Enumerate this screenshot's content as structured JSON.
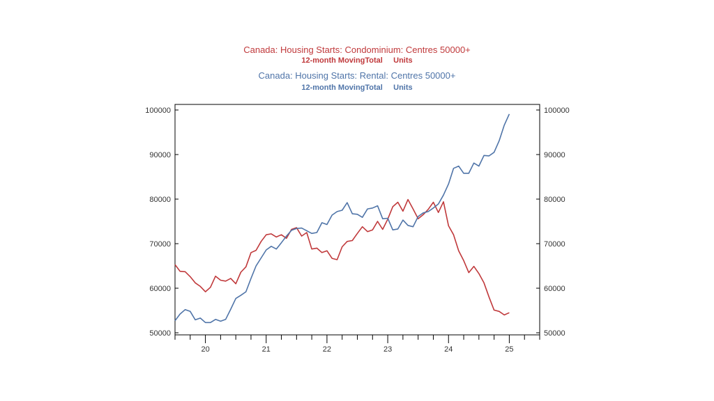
{
  "colors": {
    "condo": "#c0393b",
    "rental": "#4f74a8",
    "axis": "#000000",
    "tick_text": "#333333"
  },
  "chart_data": {
    "type": "line",
    "title": {
      "series1_line1": "Canada: Housing Starts: Condominium: Centres 50000+",
      "series1_line2": "12-month MovingTotal     Units",
      "series2_line1": "Canada: Housing Starts: Rental: Centres 50000+",
      "series2_line2": "12-month MovingTotal     Units"
    },
    "xlabel": "",
    "ylabel": "",
    "ylim": [
      50000,
      100000
    ],
    "yticks": [
      50000,
      60000,
      70000,
      80000,
      90000,
      100000
    ],
    "ytick_labels": [
      "50000",
      "60000",
      "70000",
      "80000",
      "90000",
      "100000"
    ],
    "xlim": [
      2019.5,
      2025.5
    ],
    "xtick_labels": [
      "20",
      "21",
      "22",
      "23",
      "24",
      "25"
    ],
    "xtick_label_positions": [
      2020,
      2021,
      2022,
      2023,
      2024,
      2025
    ],
    "minor_tick_step": 0.25,
    "grid": false,
    "dual_axis": true,
    "series": [
      {
        "key": "condo",
        "values": [
          [
            2019.5,
            65300
          ],
          [
            2019.583,
            63800
          ],
          [
            2019.667,
            63700
          ],
          [
            2019.75,
            62600
          ],
          [
            2019.833,
            61200
          ],
          [
            2019.917,
            60400
          ],
          [
            2020.0,
            59200
          ],
          [
            2020.083,
            60200
          ],
          [
            2020.167,
            62700
          ],
          [
            2020.25,
            61800
          ],
          [
            2020.333,
            61600
          ],
          [
            2020.417,
            62200
          ],
          [
            2020.5,
            61000
          ],
          [
            2020.583,
            63600
          ],
          [
            2020.667,
            64800
          ],
          [
            2020.75,
            68000
          ],
          [
            2020.833,
            68500
          ],
          [
            2020.917,
            70500
          ],
          [
            2021.0,
            72000
          ],
          [
            2021.083,
            72200
          ],
          [
            2021.167,
            71500
          ],
          [
            2021.25,
            72000
          ],
          [
            2021.333,
            71200
          ],
          [
            2021.417,
            73200
          ],
          [
            2021.5,
            73600
          ],
          [
            2021.583,
            71700
          ],
          [
            2021.667,
            72500
          ],
          [
            2021.75,
            68800
          ],
          [
            2021.833,
            69000
          ],
          [
            2021.917,
            68000
          ],
          [
            2022.0,
            68400
          ],
          [
            2022.083,
            66700
          ],
          [
            2022.167,
            66400
          ],
          [
            2022.25,
            69300
          ],
          [
            2022.333,
            70500
          ],
          [
            2022.417,
            70700
          ],
          [
            2022.5,
            72300
          ],
          [
            2022.583,
            73800
          ],
          [
            2022.667,
            72700
          ],
          [
            2022.75,
            73100
          ],
          [
            2022.833,
            75000
          ],
          [
            2022.917,
            73200
          ],
          [
            2023.0,
            75500
          ],
          [
            2023.083,
            78300
          ],
          [
            2023.167,
            79300
          ],
          [
            2023.25,
            77300
          ],
          [
            2023.333,
            79900
          ],
          [
            2023.417,
            77800
          ],
          [
            2023.5,
            75600
          ],
          [
            2023.583,
            76500
          ],
          [
            2023.667,
            77700
          ],
          [
            2023.75,
            79300
          ],
          [
            2023.833,
            77000
          ],
          [
            2023.917,
            79400
          ],
          [
            2024.0,
            74000
          ],
          [
            2024.083,
            72000
          ],
          [
            2024.167,
            68400
          ],
          [
            2024.25,
            66200
          ],
          [
            2024.333,
            63500
          ],
          [
            2024.417,
            64900
          ],
          [
            2024.5,
            63300
          ],
          [
            2024.583,
            61200
          ],
          [
            2024.667,
            58000
          ],
          [
            2024.75,
            55100
          ],
          [
            2024.833,
            54800
          ],
          [
            2024.917,
            54000
          ],
          [
            2025.0,
            54500
          ]
        ]
      },
      {
        "key": "rental",
        "values": [
          [
            2019.5,
            52700
          ],
          [
            2019.583,
            54200
          ],
          [
            2019.667,
            55200
          ],
          [
            2019.75,
            54800
          ],
          [
            2019.833,
            52900
          ],
          [
            2019.917,
            53300
          ],
          [
            2020.0,
            52300
          ],
          [
            2020.083,
            52300
          ],
          [
            2020.167,
            53000
          ],
          [
            2020.25,
            52600
          ],
          [
            2020.333,
            53000
          ],
          [
            2020.417,
            55300
          ],
          [
            2020.5,
            57700
          ],
          [
            2020.583,
            58400
          ],
          [
            2020.667,
            59200
          ],
          [
            2020.75,
            62200
          ],
          [
            2020.833,
            65000
          ],
          [
            2020.917,
            66800
          ],
          [
            2021.0,
            68600
          ],
          [
            2021.083,
            69400
          ],
          [
            2021.167,
            68800
          ],
          [
            2021.25,
            70200
          ],
          [
            2021.333,
            71700
          ],
          [
            2021.417,
            73000
          ],
          [
            2021.5,
            73400
          ],
          [
            2021.583,
            73500
          ],
          [
            2021.667,
            72900
          ],
          [
            2021.75,
            72300
          ],
          [
            2021.833,
            72500
          ],
          [
            2021.917,
            74700
          ],
          [
            2022.0,
            74300
          ],
          [
            2022.083,
            76400
          ],
          [
            2022.167,
            77200
          ],
          [
            2022.25,
            77500
          ],
          [
            2022.333,
            79200
          ],
          [
            2022.417,
            76700
          ],
          [
            2022.5,
            76600
          ],
          [
            2022.583,
            75900
          ],
          [
            2022.667,
            77800
          ],
          [
            2022.75,
            78000
          ],
          [
            2022.833,
            78500
          ],
          [
            2022.917,
            75600
          ],
          [
            2023.0,
            75700
          ],
          [
            2023.083,
            73100
          ],
          [
            2023.167,
            73300
          ],
          [
            2023.25,
            75300
          ],
          [
            2023.333,
            74100
          ],
          [
            2023.417,
            73800
          ],
          [
            2023.5,
            76100
          ],
          [
            2023.583,
            76900
          ],
          [
            2023.667,
            77200
          ],
          [
            2023.75,
            78000
          ],
          [
            2023.833,
            78900
          ],
          [
            2023.917,
            80900
          ],
          [
            2024.0,
            83400
          ],
          [
            2024.083,
            86900
          ],
          [
            2024.167,
            87400
          ],
          [
            2024.25,
            85800
          ],
          [
            2024.333,
            85800
          ],
          [
            2024.417,
            88100
          ],
          [
            2024.5,
            87400
          ],
          [
            2024.583,
            89800
          ],
          [
            2024.667,
            89700
          ],
          [
            2024.75,
            90500
          ],
          [
            2024.833,
            93100
          ],
          [
            2024.917,
            96600
          ],
          [
            2025.0,
            99100
          ]
        ]
      }
    ]
  }
}
